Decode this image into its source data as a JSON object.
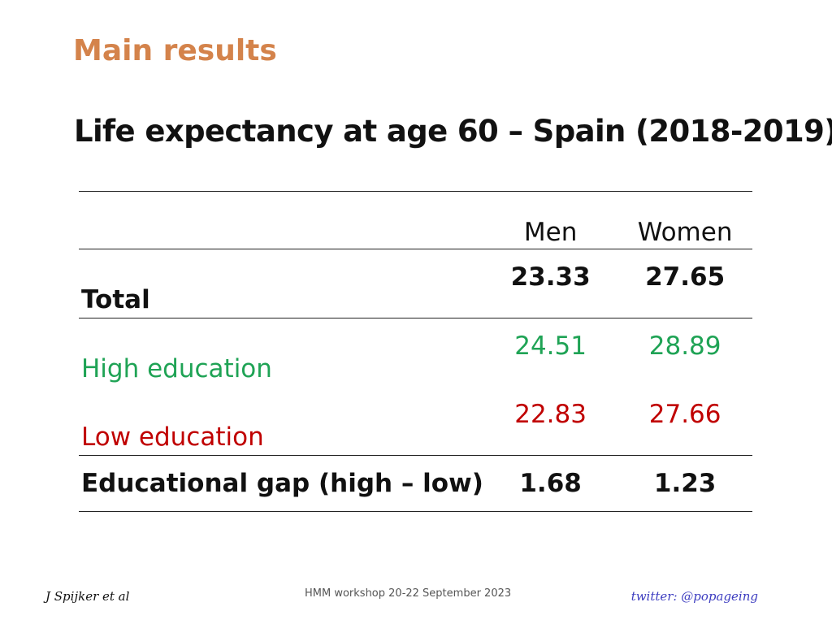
{
  "slide": {
    "heading": "Main results",
    "subheading": "Life expectancy at age 60 – Spain (2018-2019)"
  },
  "table": {
    "columns": [
      "Men",
      "Women"
    ],
    "rows": [
      {
        "label": "Total",
        "men": "23.33",
        "women": "27.65"
      },
      {
        "label": "High education",
        "men": "24.51",
        "women": "28.89"
      },
      {
        "label": "Low education",
        "men": "22.83",
        "women": "27.66"
      },
      {
        "label": "Educational gap (high – low)",
        "men": "1.68",
        "women": "1.23"
      }
    ]
  },
  "colors": {
    "heading": "#D4834B",
    "high_education": "#1fa355",
    "low_education": "#c00000",
    "twitter": "#3d3dc0"
  },
  "footer": {
    "author": "J Spijker et al",
    "event": "HMM workshop 20-22 September 2023",
    "twitter": "twitter: @popageing"
  }
}
